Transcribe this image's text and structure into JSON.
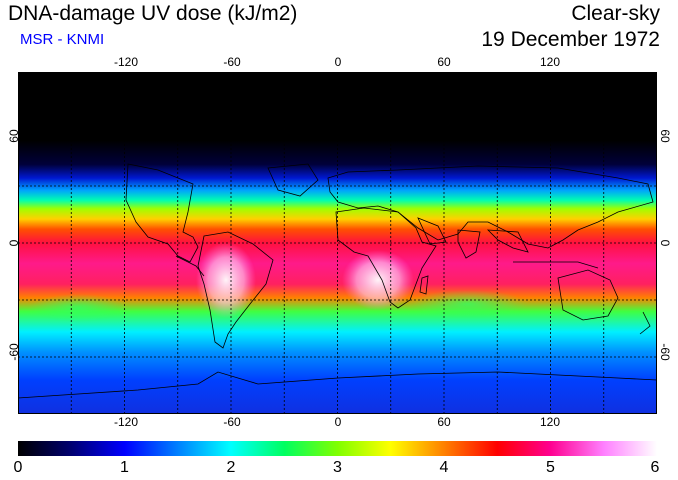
{
  "header": {
    "title": "DNA-damage UV dose (kJ/m2)",
    "subtitle": "MSR - KNMI",
    "condition": "Clear-sky",
    "date": "19 December 1972"
  },
  "map": {
    "lon_ticks": [
      "-120",
      "-60",
      "0",
      "60",
      "120"
    ],
    "lat_ticks": [
      "60",
      "0",
      "-60"
    ],
    "lon_tick_values": [
      -120,
      -60,
      0,
      60,
      120
    ],
    "lat_tick_values": [
      60,
      0,
      -60
    ],
    "lon_range": [
      -180,
      180
    ],
    "lat_range": [
      -90,
      90
    ]
  },
  "colorbar": {
    "labels": [
      "0",
      "1",
      "2",
      "3",
      "4",
      "5",
      "6"
    ],
    "values": [
      0,
      1,
      2,
      3,
      4,
      5,
      6
    ],
    "colors": [
      "#000000",
      "#000070",
      "#0000ff",
      "#0080ff",
      "#00ffff",
      "#00ff60",
      "#80ff00",
      "#ffff00",
      "#ff8000",
      "#ff0000",
      "#ff0090",
      "#ff80ff",
      "#ffffff"
    ]
  }
}
